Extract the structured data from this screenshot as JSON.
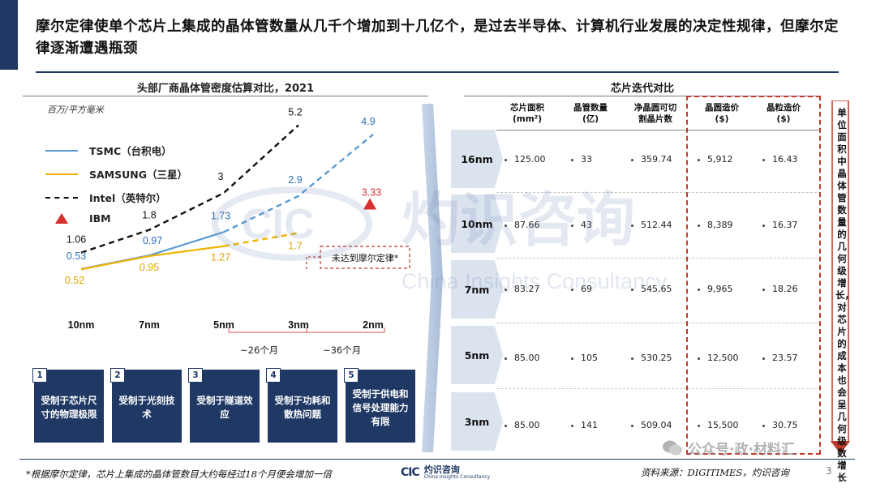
{
  "header": {
    "title": "摩尔定律使单个芯片上集成的晶体管数量从几千个增加到十几亿个，是过去半导体、计算机行业发展的决定性规律，但摩尔定律逐渐遭遇瓶颈"
  },
  "left_panel": {
    "title": "头部厂商晶体管密度估算对比，2021",
    "unit": "百万/平方毫米",
    "legend": [
      {
        "name": "TSMC（台积电）",
        "color": "#5b9bd5",
        "style": "solid"
      },
      {
        "name": "SAMSUNG（三星）",
        "color": "#f0b400",
        "style": "solid"
      },
      {
        "name": "Intel（英特尔）",
        "color": "#111111",
        "style": "dashed"
      },
      {
        "name": "IBM",
        "color": "#d63030",
        "style": "triangle"
      }
    ],
    "nodes": [
      "10nm",
      "7nm",
      "5nm",
      "3nm",
      "2nm"
    ],
    "generation_gaps": [
      "~26个月",
      "~36个月"
    ],
    "callout": "未达到摩尔定律*",
    "constraints": [
      {
        "num": "1",
        "text": "受制于芯片尺寸的物理极限"
      },
      {
        "num": "2",
        "text": "受制于光刻技术"
      },
      {
        "num": "3",
        "text": "受制于隧道效应"
      },
      {
        "num": "4",
        "text": "受制于功耗和散热问题"
      },
      {
        "num": "5",
        "text": "受制于供电和信号处理能力有限"
      }
    ]
  },
  "chart_data": {
    "type": "line",
    "title": "头部厂商晶体管密度估算对比，2021",
    "ylabel": "百万/平方毫米",
    "categories": [
      "10nm",
      "7nm",
      "5nm",
      "3nm",
      "2nm"
    ],
    "series": [
      {
        "name": "TSMC（台积电）",
        "values": [
          0.53,
          0.97,
          1.73,
          2.9,
          4.9
        ],
        "color": "#5b9bd5",
        "projected_from_index": 2
      },
      {
        "name": "SAMSUNG（三星）",
        "values": [
          0.52,
          0.95,
          1.27,
          1.7,
          null
        ],
        "color": "#f0b400",
        "projected_from_index": 2
      },
      {
        "name": "Intel（英特尔）",
        "values": [
          1.06,
          1.8,
          3,
          5.2,
          null
        ],
        "color": "#111111",
        "projected_from_index": 0
      },
      {
        "name": "IBM",
        "values": [
          null,
          null,
          null,
          null,
          3.33
        ],
        "color": "#d63030",
        "marker": "triangle"
      }
    ],
    "annotation": "未达到摩尔定律*"
  },
  "right_panel": {
    "title": "芯片迭代对比",
    "headers": [
      [
        "芯片面积",
        "(mm²)"
      ],
      [
        "晶管数量",
        "(亿)"
      ],
      [
        "净晶圆可切",
        "割晶片数"
      ],
      [
        "晶圆造价",
        "($)"
      ],
      [
        "晶粒造价",
        "($)"
      ]
    ],
    "rows": [
      {
        "node": "16nm",
        "values": [
          "125.00",
          "33",
          "359.74",
          "5,912",
          "16.43"
        ]
      },
      {
        "node": "10nm",
        "values": [
          "87.66",
          "43",
          "512.44",
          "8,389",
          "16.37"
        ]
      },
      {
        "node": "7nm",
        "values": [
          "83.27",
          "69",
          "545.65",
          "9,965",
          "18.26"
        ]
      },
      {
        "node": "5nm",
        "values": [
          "85.00",
          "105",
          "530.25",
          "12,500",
          "23.57"
        ]
      },
      {
        "node": "3nm",
        "values": [
          "85.00",
          "141",
          "509.04",
          "15,500",
          "30.75"
        ]
      }
    ],
    "side_note": "单位面积中晶体管数量的几何级增长，对芯片的成本也会呈几何级数增长"
  },
  "footer": {
    "footnote": "*根据摩尔定律，芯片上集成的晶体管数目大约每经过18个月便会增加一倍",
    "logo_mark": "CIC",
    "logo_cn": "灼识咨询",
    "logo_en": "China Insights Consultancy",
    "source": "资料来源：DIGITIMES，灼识咨询",
    "page": "3"
  },
  "watermark": {
    "cn": "灼识咨询",
    "en": "China Insights Consultancy",
    "mark": "CIC",
    "wechat": "公众号·政·材料汇"
  },
  "colors": {
    "navy": "#1f3864",
    "red": "#c0392b",
    "lightblue": "#dbe3ef"
  }
}
